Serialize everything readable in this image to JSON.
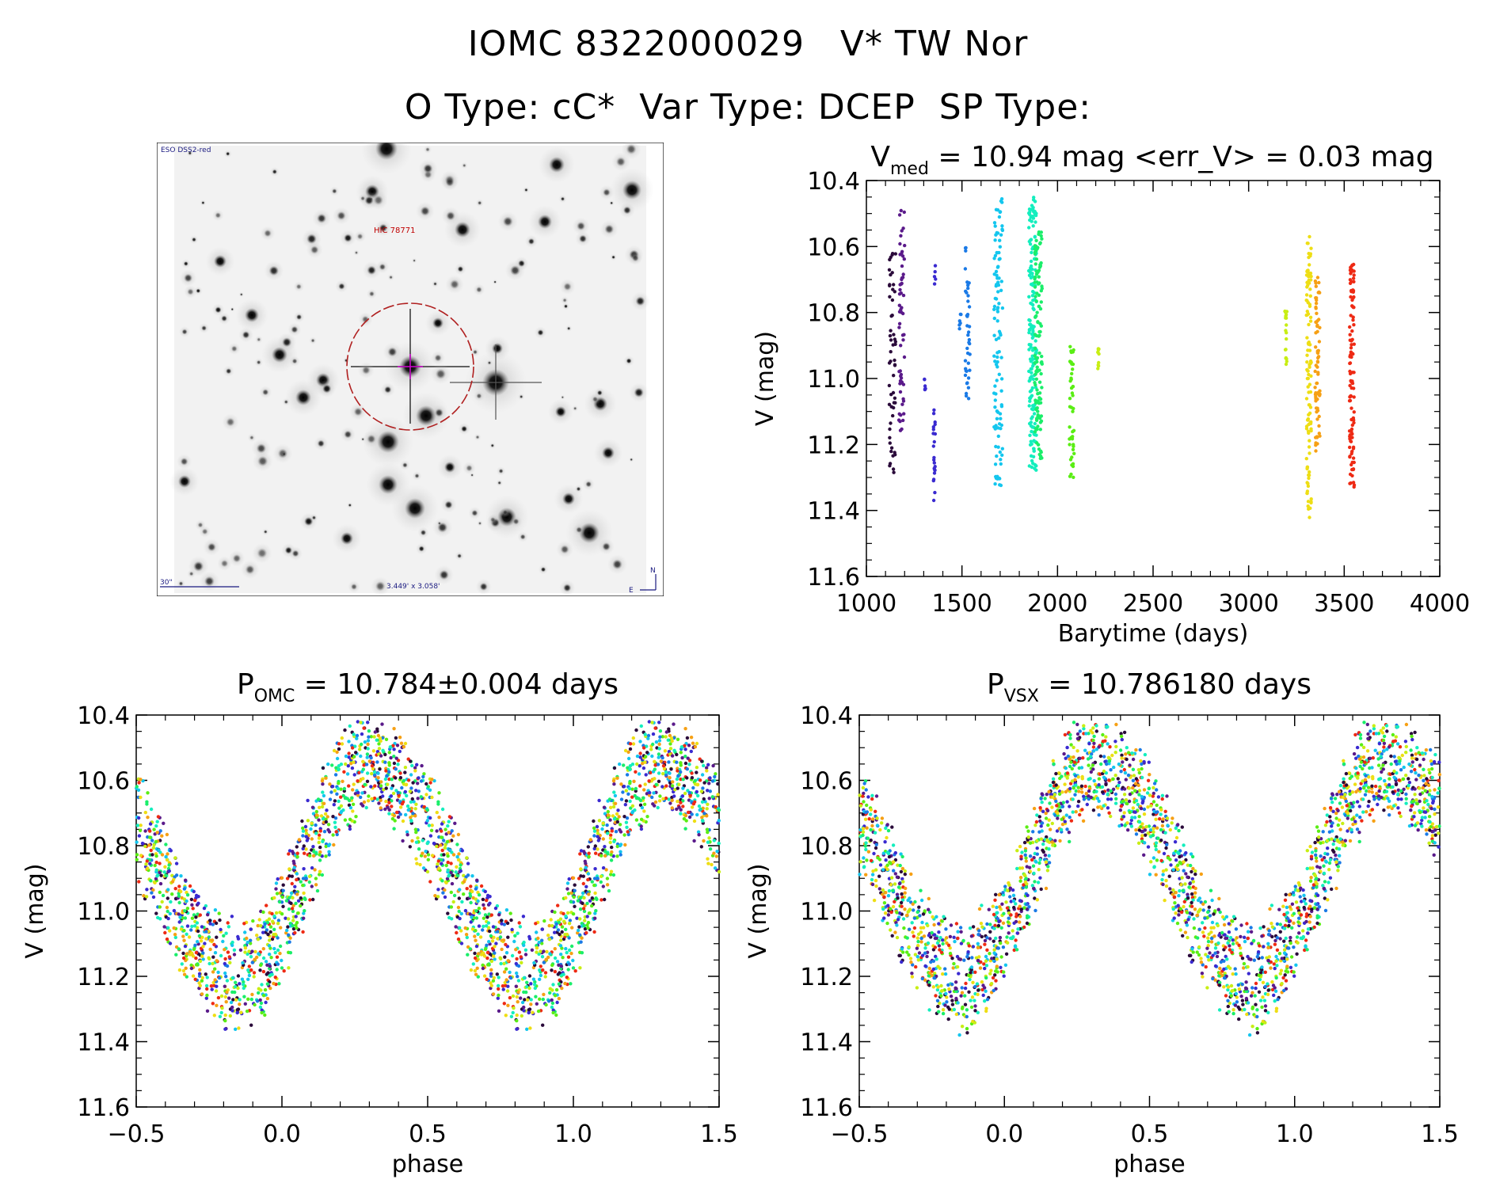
{
  "header": {
    "object_title": "IOMC 8322000029   V* TW Nor",
    "type_line": "O Type: cC*  Var Type: DCEP  SP Type:"
  },
  "finder_image": {
    "survey_label": "ESO DSS2-red",
    "target_label": "HIC 78771",
    "scale_label": "30\"",
    "fov_label": "3.449' x 3.058'",
    "north_label": "N",
    "east_label": "E"
  },
  "colors": {
    "axis": "#000000",
    "finder_circle": "#b02020",
    "finder_label": "#c00000",
    "finder_text": "#1a1a80",
    "palette": [
      "#2a0a3a",
      "#5a1a8a",
      "#3a2ad0",
      "#1a7ae6",
      "#14c6ee",
      "#14eebe",
      "#1aee6a",
      "#5aee14",
      "#c8ee14",
      "#eede14",
      "#f6a014",
      "#ee2a14"
    ]
  },
  "chart_data": [
    {
      "id": "lightcurve",
      "type": "scatter",
      "title_main": "V",
      "title_sub": "med",
      "title_rest": " = 10.94 mag <err_V> = 0.03 mag",
      "xlabel": "Barytime (days)",
      "ylabel": "V (mag)",
      "xlim": [
        1000,
        4000
      ],
      "ylim": [
        10.4,
        11.6
      ],
      "y_inverted": true,
      "xticks": [
        1000,
        1500,
        2000,
        2500,
        3000,
        3500,
        4000
      ],
      "xtick_labels": [
        "1000",
        "1500",
        "2000",
        "2500",
        "3000",
        "3500",
        "4000"
      ],
      "yticks": [
        10.4,
        10.6,
        10.8,
        11.0,
        11.2,
        11.4,
        11.6
      ],
      "ytick_labels": [
        "10.4",
        "10.6",
        "10.8",
        "11.0",
        "11.2",
        "11.4",
        "11.6"
      ],
      "groups": [
        {
          "t": 1135,
          "width": 35,
          "ymin": 10.62,
          "ymax": 11.3,
          "n": 55,
          "c": 0
        },
        {
          "t": 1185,
          "width": 30,
          "ymin": 10.47,
          "ymax": 11.2,
          "n": 60,
          "c": 1
        },
        {
          "t": 1305,
          "width": 8,
          "ymin": 11.0,
          "ymax": 11.06,
          "n": 6,
          "c": 2
        },
        {
          "t": 1355,
          "width": 12,
          "ymin": 11.08,
          "ymax": 11.37,
          "n": 22,
          "c": 2
        },
        {
          "t": 1360,
          "width": 8,
          "ymin": 10.65,
          "ymax": 10.72,
          "n": 5,
          "c": 2
        },
        {
          "t": 1490,
          "width": 12,
          "ymin": 10.8,
          "ymax": 10.85,
          "n": 6,
          "c": 3
        },
        {
          "t": 1530,
          "width": 25,
          "ymin": 10.6,
          "ymax": 11.08,
          "n": 40,
          "c": 3
        },
        {
          "t": 1690,
          "width": 45,
          "ymin": 10.45,
          "ymax": 11.33,
          "n": 110,
          "c": 4
        },
        {
          "t": 1870,
          "width": 40,
          "ymin": 10.45,
          "ymax": 11.28,
          "n": 180,
          "c": 5
        },
        {
          "t": 1900,
          "width": 40,
          "ymin": 10.55,
          "ymax": 11.25,
          "n": 120,
          "c": 6
        },
        {
          "t": 2075,
          "width": 25,
          "ymin": 10.9,
          "ymax": 11.3,
          "n": 45,
          "c": 7
        },
        {
          "t": 2215,
          "width": 8,
          "ymin": 10.9,
          "ymax": 10.99,
          "n": 10,
          "c": 8
        },
        {
          "t": 3195,
          "width": 10,
          "ymin": 10.79,
          "ymax": 10.97,
          "n": 18,
          "c": 8
        },
        {
          "t": 3315,
          "width": 25,
          "ymin": 10.57,
          "ymax": 11.43,
          "n": 110,
          "c": 9
        },
        {
          "t": 3360,
          "width": 25,
          "ymin": 10.69,
          "ymax": 11.22,
          "n": 70,
          "c": 10
        },
        {
          "t": 3540,
          "width": 25,
          "ymin": 10.65,
          "ymax": 11.34,
          "n": 110,
          "c": 11
        }
      ]
    },
    {
      "id": "phase_omc",
      "type": "scatter",
      "title_main": "P",
      "title_sub": "OMC",
      "title_rest": " = 10.784±0.004 days",
      "xlabel": "phase",
      "ylabel": "V (mag)",
      "xlim": [
        -0.5,
        1.5
      ],
      "ylim": [
        10.4,
        11.6
      ],
      "y_inverted": true,
      "xticks": [
        -0.5,
        0.0,
        0.5,
        1.0,
        1.5
      ],
      "xtick_labels": [
        "−0.5",
        "0.0",
        "0.5",
        "1.0",
        "1.5"
      ],
      "yticks": [
        10.4,
        10.6,
        10.8,
        11.0,
        11.2,
        11.4,
        11.6
      ],
      "ytick_labels": [
        "10.4",
        "10.6",
        "10.8",
        "11.0",
        "11.2",
        "11.4",
        "11.6"
      ],
      "curve": {
        "mean": 10.96,
        "min_phase": 0.85,
        "max_phase": 0.3,
        "min_mag": 11.2,
        "max_mag": 10.55
      },
      "n_points": 1300,
      "seed": 11
    },
    {
      "id": "phase_vsx",
      "type": "scatter",
      "title_main": "P",
      "title_sub": "VSX",
      "title_rest": " = 10.786180 days",
      "xlabel": "phase",
      "ylabel": "V (mag)",
      "xlim": [
        -0.5,
        1.5
      ],
      "ylim": [
        10.4,
        11.6
      ],
      "y_inverted": true,
      "xticks": [
        -0.5,
        0.0,
        0.5,
        1.0,
        1.5
      ],
      "xtick_labels": [
        "−0.5",
        "0.0",
        "0.5",
        "1.0",
        "1.5"
      ],
      "yticks": [
        10.4,
        10.6,
        10.8,
        11.0,
        11.2,
        11.4,
        11.6
      ],
      "ytick_labels": [
        "10.4",
        "10.6",
        "10.8",
        "11.0",
        "11.2",
        "11.4",
        "11.6"
      ],
      "curve": {
        "mean": 10.96,
        "min_phase": 0.85,
        "max_phase": 0.32,
        "min_mag": 11.2,
        "max_mag": 10.55
      },
      "n_points": 1300,
      "seed": 23
    }
  ]
}
